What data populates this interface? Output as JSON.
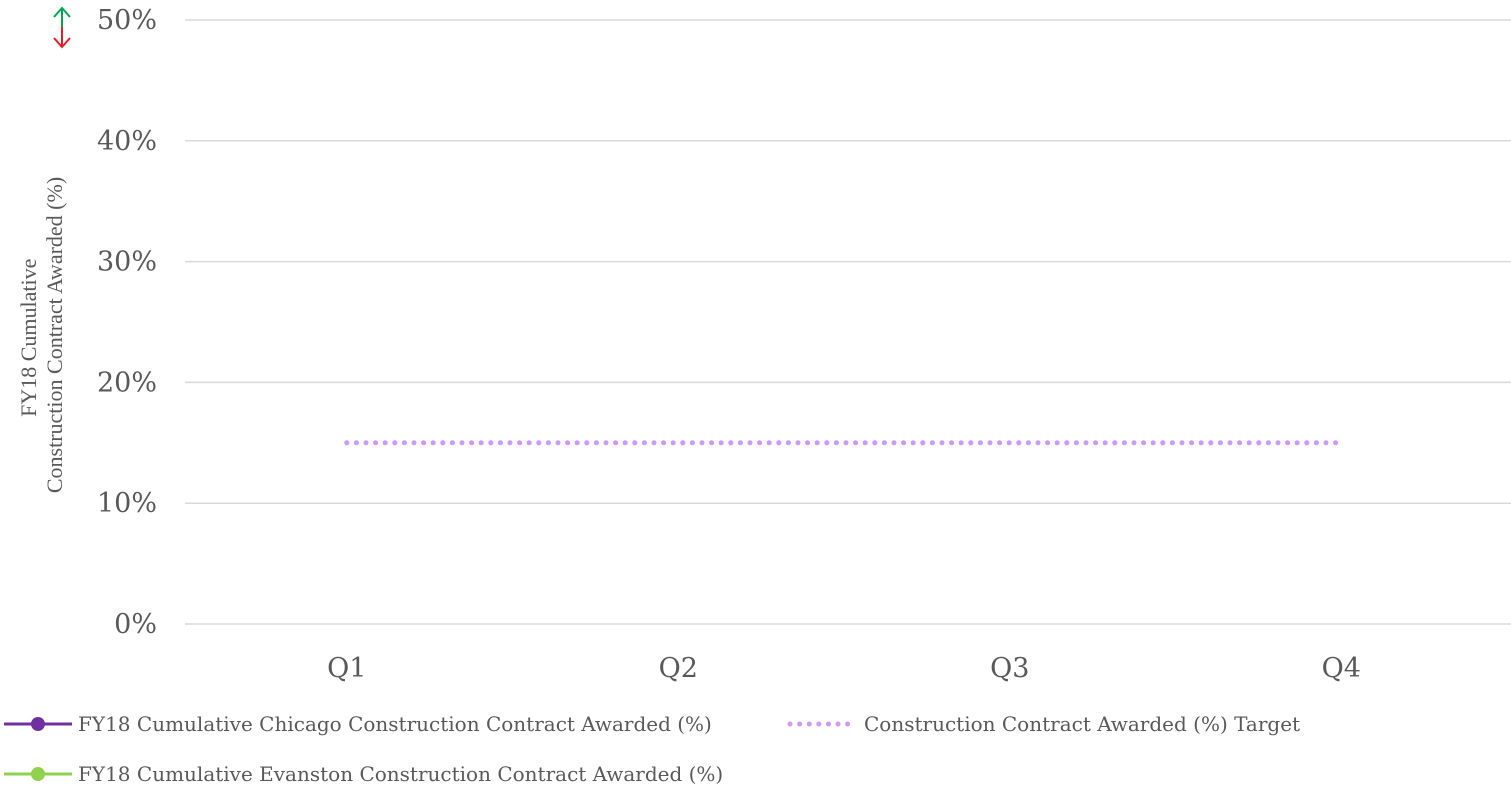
{
  "chart_data": {
    "type": "line",
    "categories": [
      "Q1",
      "Q2",
      "Q3",
      "Q4"
    ],
    "ylim": [
      0,
      50
    ],
    "yticks": [
      0,
      10,
      20,
      30,
      40,
      50
    ],
    "ytick_labels": [
      "0%",
      "10%",
      "20%",
      "30%",
      "40%",
      "50%"
    ],
    "ylabel_lines": [
      "FY18 Cumulative",
      "Construction Contract  Awarded (%)"
    ],
    "xlabel": "",
    "title": "",
    "grid": true,
    "legend_position": "bottom",
    "series": [
      {
        "name": "FY18 Cumulative Chicago Construction Contract Awarded (%)",
        "values": [
          null,
          null,
          null,
          null
        ],
        "color": "#7030a0",
        "style": "solid-marker"
      },
      {
        "name": "Construction Contract Awarded (%) Target",
        "values": [
          15,
          15,
          15,
          15
        ],
        "color": "#cc99ff",
        "style": "dotted"
      },
      {
        "name": "FY18 Cumulative Evanston Construction Contract Awarded (%)",
        "values": [
          null,
          null,
          null,
          null
        ],
        "color": "#92d050",
        "style": "solid-marker"
      }
    ],
    "indicator": {
      "icon": "up-down-arrow-icon",
      "up_color": "#00a651",
      "down_color": "#e81c24"
    }
  }
}
